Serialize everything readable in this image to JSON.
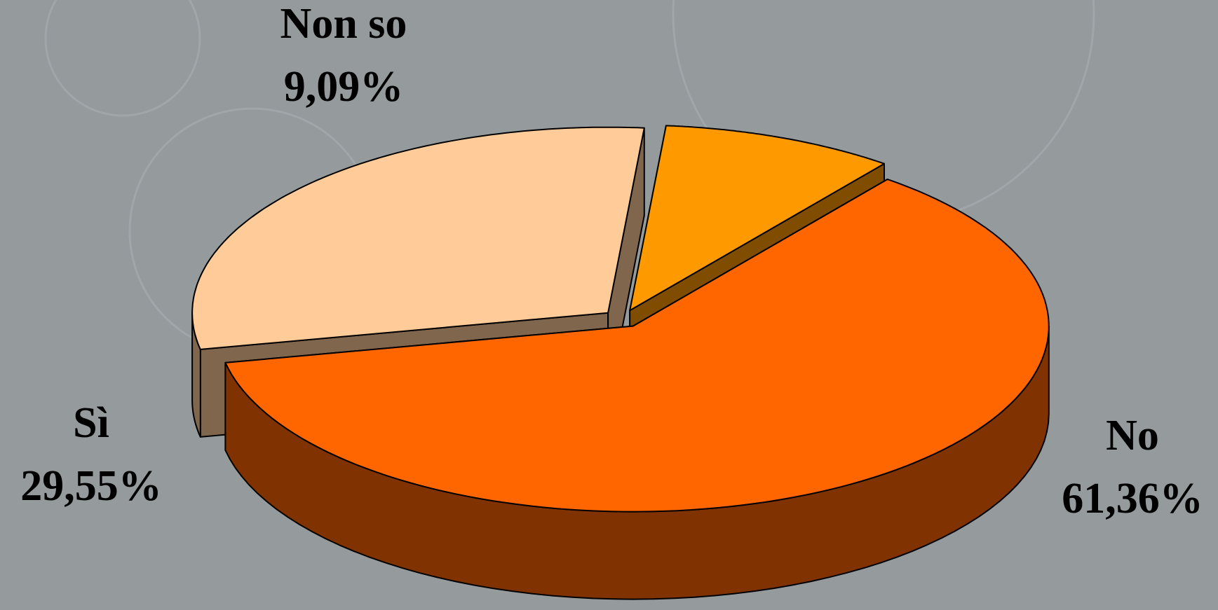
{
  "chart_data": {
    "type": "pie3d",
    "categories": [
      "Non so",
      "No",
      "Sì"
    ],
    "values": [
      9.09,
      61.36,
      29.55
    ],
    "value_labels": [
      "9,09%",
      "61,36%",
      "29,55%"
    ],
    "colors": [
      "#FF9900",
      "#FF6600",
      "#FFCC99"
    ]
  }
}
